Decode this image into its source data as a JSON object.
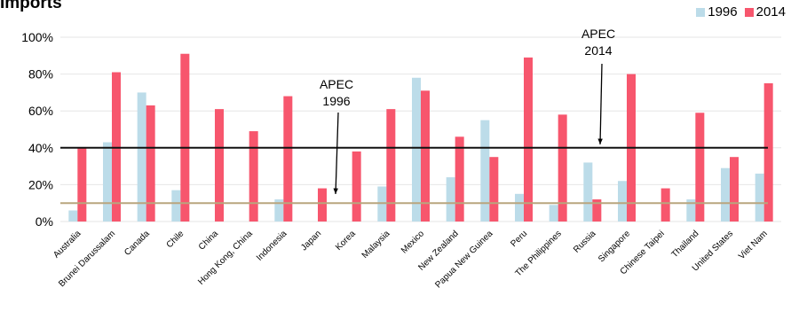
{
  "title": "Imports",
  "colors": {
    "s1996": "#bcdce9",
    "s2014": "#f7566d",
    "apec1996_line": "#b9a57e",
    "apec2014_line": "#111111",
    "grid": "#e6e6e6"
  },
  "annotations": {
    "apec1996": [
      "APEC",
      "1996"
    ],
    "apec2014": [
      "APEC",
      "2014"
    ]
  },
  "chart_data": {
    "type": "bar",
    "title": "Imports",
    "xlabel": "",
    "ylabel": "",
    "ylim": [
      0,
      100
    ],
    "yticks": [
      "0%",
      "20%",
      "40%",
      "60%",
      "80%",
      "100%"
    ],
    "legend_position": "top-right",
    "categories": [
      "Australia",
      "Brunei Darussalam",
      "Canada",
      "Chile",
      "China",
      "Hong Kong, China",
      "Indonesia",
      "Japan",
      "Korea",
      "Malaysia",
      "Mexico",
      "New Zealand",
      "Papua New Guinea",
      "Peru",
      "The Philippines",
      "Russia",
      "Singapore",
      "Chinese Taipei",
      "Thailand",
      "United States",
      "Viet Nam"
    ],
    "series": [
      {
        "name": "1996",
        "values": [
          6,
          43,
          70,
          17,
          0,
          0,
          12,
          0,
          0,
          19,
          78,
          24,
          55,
          15,
          9,
          32,
          22,
          0,
          12,
          29,
          26
        ]
      },
      {
        "name": "2014",
        "values": [
          40,
          81,
          63,
          91,
          61,
          49,
          68,
          18,
          38,
          61,
          71,
          46,
          35,
          89,
          58,
          12,
          80,
          18,
          59,
          35,
          75
        ]
      }
    ],
    "reference_lines": [
      {
        "name": "APEC 1996",
        "value": 10
      },
      {
        "name": "APEC 2014",
        "value": 40
      }
    ],
    "grid": true
  }
}
